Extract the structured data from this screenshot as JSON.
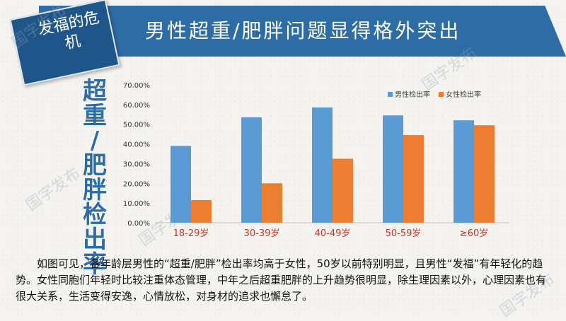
{
  "header": {
    "tag_text": "发福的危机",
    "title": "男性超重/肥胖问题显得格外突出"
  },
  "side_title": "超重/肥胖检出率",
  "watermark": "国字发布",
  "caption": "如图可见，各年龄层男性的“超重/肥胖”检出率均高于女性，50岁以前特别明显，且男性“发福”有年轻化的趋势。女性同胞们年轻时比较注重体态管理，中年之后超重肥胖的上升趋势很明显，除生理因素以外，心理因素也有很大关系，生活变得安逸，心情放松，对身材的追求也懈怠了。",
  "colors": {
    "male": "#5b9bd5",
    "female": "#ed7d31",
    "banner": "#2e6ca6",
    "category_label": "#c0392b"
  },
  "chart_data": {
    "type": "bar",
    "categories": [
      "18-29岁",
      "30-39岁",
      "40-49岁",
      "50-59岁",
      "≥60岁"
    ],
    "series": [
      {
        "name": "男性检出率",
        "values": [
          39.0,
          53.5,
          58.5,
          54.5,
          52.0
        ]
      },
      {
        "name": "女性检出率",
        "values": [
          11.5,
          20.0,
          32.5,
          44.5,
          49.5
        ]
      }
    ],
    "ylim": [
      0,
      70
    ],
    "yticks": [
      "0.00%",
      "10.00%",
      "20.00%",
      "30.00%",
      "40.00%",
      "50.00%",
      "60.00%",
      "70.00%"
    ],
    "legend": "top-right",
    "grid": false
  }
}
